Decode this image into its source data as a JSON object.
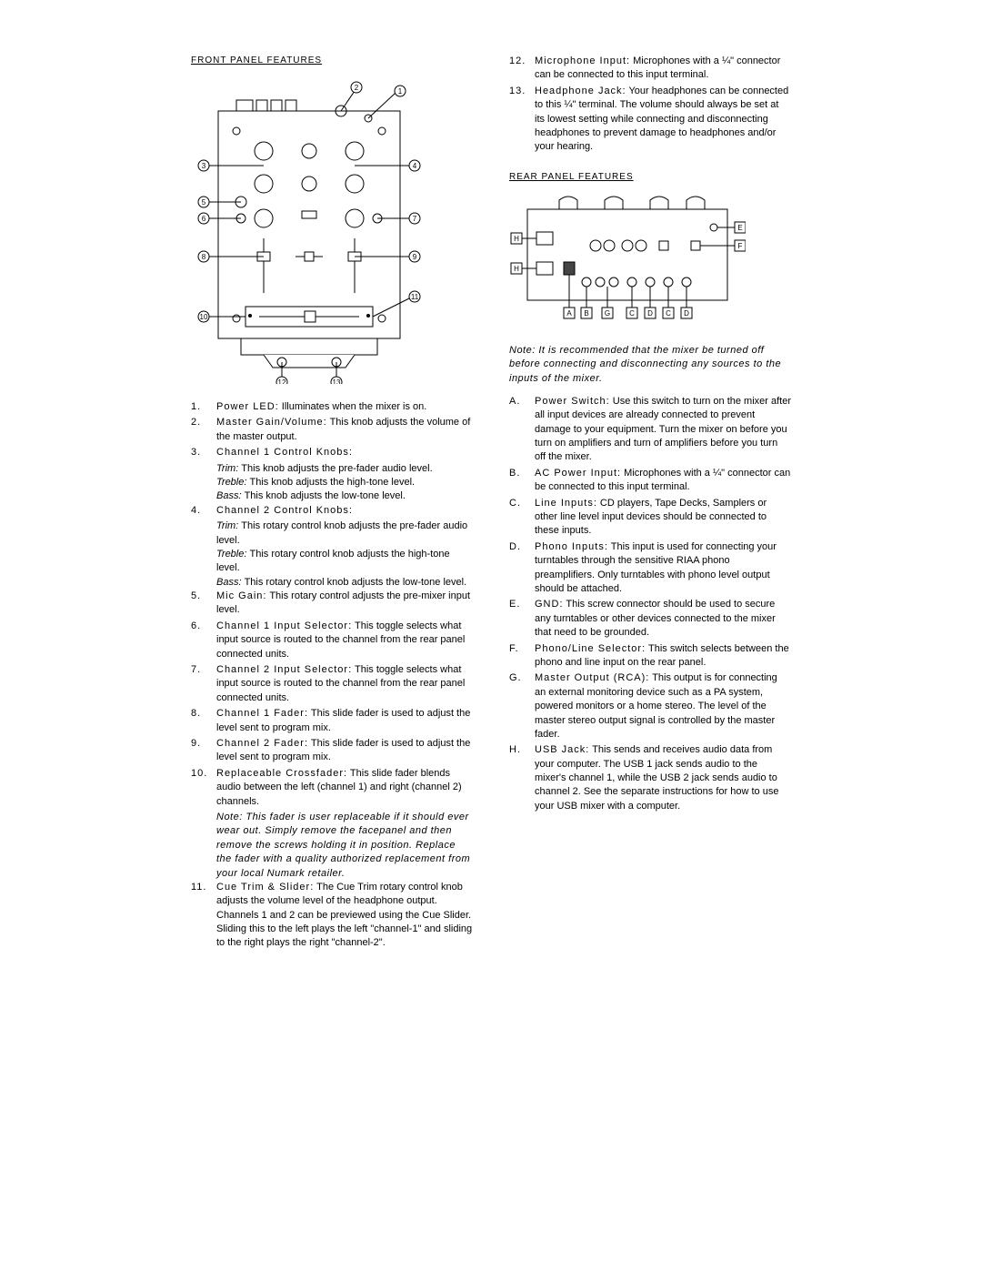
{
  "left": {
    "title": "FRONT PANEL FEATURES",
    "items": [
      {
        "n": "1.",
        "t": "Power LED: Illuminates when the mixer is on."
      },
      {
        "n": "2.",
        "t": "Master Gain/Volume: This knob adjusts the volume of the master output."
      },
      {
        "n": "3.",
        "t": "Channel 1 Control Knobs:",
        "sub": [
          {
            "l": "Trim:",
            "t": "This knob adjusts the pre-fader audio level."
          },
          {
            "l": "Treble:",
            "t": "This knob adjusts the high-tone level."
          },
          {
            "l": "Bass:",
            "t": "This knob adjusts the low-tone level."
          }
        ]
      },
      {
        "n": "4.",
        "t": "Channel 2 Control Knobs:",
        "sub": [
          {
            "l": "Trim:",
            "t": "This rotary control knob adjusts the pre-fader audio level."
          },
          {
            "l": "Treble:",
            "t": "This rotary control knob adjusts the high-tone level."
          },
          {
            "l": "Bass:",
            "t": "This rotary control knob adjusts the low-tone level."
          }
        ]
      },
      {
        "n": "5.",
        "t": "Mic Gain: This rotary control adjusts the pre-mixer input level."
      },
      {
        "n": "6.",
        "t": "Channel 1 Input Selector: This toggle selects what input source is routed to the channel from the rear panel connected units."
      },
      {
        "n": "7.",
        "t": "Channel 2 Input Selector: This toggle selects what input source is routed to the channel from the rear panel connected units."
      },
      {
        "n": "8.",
        "t": "Channel 1 Fader: This slide fader is used to adjust the level sent to program mix."
      },
      {
        "n": "9.",
        "t": "Channel 2 Fader: This slide fader is used to adjust the level sent to program mix."
      },
      {
        "n": "10.",
        "t": "Replaceable Crossfader: This slide fader blends audio between the left (channel 1) and right (channel 2) channels.",
        "note": "Note: This fader is user replaceable if it should ever wear out. Simply remove the facepanel and then remove the screws holding it in position. Replace the fader with a quality authorized replacement from your local Numark retailer."
      },
      {
        "n": "11.",
        "t": "Cue Trim & Slider: The Cue Trim rotary control knob adjusts the volume level of the headphone output. Channels 1 and 2 can be previewed using the Cue Slider. Sliding this to the left plays the left \"channel-1\" and sliding to the right plays the right \"channel-2\"."
      }
    ]
  },
  "right": {
    "toplist": [
      {
        "n": "12.",
        "t": "Microphone Input: Microphones with a ¼\" connector can be connected to this input terminal."
      },
      {
        "n": "13.",
        "t": "Headphone Jack: Your headphones can be connected to this ¼\" terminal. The volume should always be set at its lowest setting while connecting and disconnecting headphones to prevent damage to headphones and/or your hearing."
      }
    ],
    "title": "REAR PANEL FEATURES",
    "note": "Note: It is recommended that the mixer be turned off before connecting and disconnecting any sources to the inputs of the mixer.",
    "items": [
      {
        "n": "A.",
        "t": "Power Switch: Use this switch to turn on the mixer after all input devices are already connected to prevent damage to your equipment. Turn the mixer on before you turn on amplifiers and turn of amplifiers before you turn off the mixer."
      },
      {
        "n": "B.",
        "t": "AC Power Input: Microphones with a ¼\" connector can be connected to this input terminal."
      },
      {
        "n": "C.",
        "t": "Line Inputs: CD players, Tape Decks, Samplers or other line level input devices should be connected to these inputs."
      },
      {
        "n": "D.",
        "t": "Phono Inputs: This input is used for connecting your turntables through the sensitive RIAA phono preamplifiers. Only turntables with phono level output should be attached."
      },
      {
        "n": "E.",
        "t": "GND: This screw connector should be used to secure any turntables or other devices connected to the mixer that need to be grounded."
      },
      {
        "n": "F.",
        "t": "Phono/Line Selector: This switch selects between the phono and line input on the rear panel."
      },
      {
        "n": "G.",
        "t": "Master Output (RCA): This output is for connecting an external monitoring device such as a PA system, powered monitors or a home stereo. The level of the master stereo output signal is controlled by the master fader."
      },
      {
        "n": "H.",
        "t": "USB Jack: This sends and receives audio data from your computer. The USB 1 jack sends audio to the mixer's channel 1, while the USB 2 jack sends audio to channel 2. See the separate instructions for how to use your USB mixer with a computer."
      }
    ]
  },
  "diagrams": {
    "front": {
      "callouts": [
        "1",
        "2",
        "3",
        "4",
        "5",
        "6",
        "7",
        "8",
        "9",
        "10",
        "11",
        "12",
        "13"
      ]
    },
    "rear": {
      "callouts": [
        "A",
        "B",
        "C",
        "D",
        "E",
        "F",
        "G",
        "H"
      ]
    },
    "stroke": "#000000",
    "fill": "#ffffff"
  }
}
